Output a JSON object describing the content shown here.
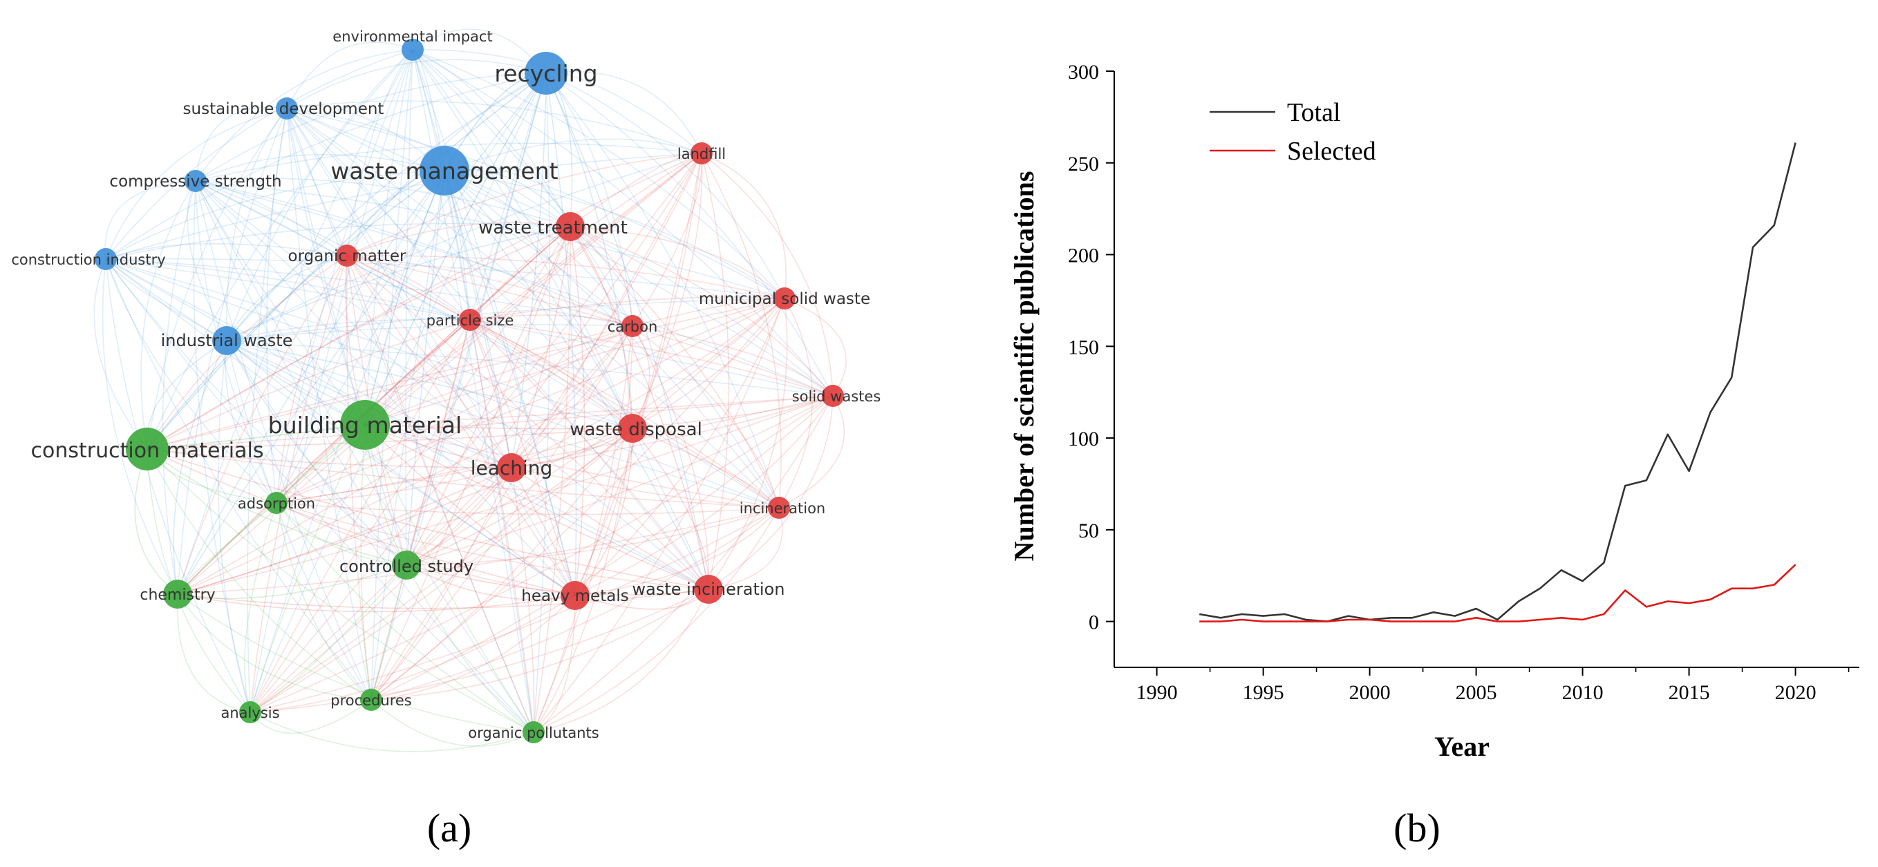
{
  "panel_labels": [
    "(a)",
    "(b)"
  ],
  "colors": {
    "blue": "#3d8fd9",
    "red": "#e03a3a",
    "green": "#3aa83a",
    "total_line": "#333333",
    "selected_line": "#e01818"
  },
  "chart_data": [
    {
      "type": "network",
      "title": "",
      "clusters": [
        "blue",
        "red",
        "green"
      ],
      "nodes": [
        {
          "label": "environmental impact",
          "cluster": "blue",
          "weight": 2
        },
        {
          "label": "recycling",
          "cluster": "blue",
          "weight": 5
        },
        {
          "label": "sustainable development",
          "cluster": "blue",
          "weight": 2
        },
        {
          "label": "waste management",
          "cluster": "blue",
          "weight": 6
        },
        {
          "label": "compressive strength",
          "cluster": "blue",
          "weight": 2
        },
        {
          "label": "construction industry",
          "cluster": "blue",
          "weight": 2
        },
        {
          "label": "industrial waste",
          "cluster": "blue",
          "weight": 3
        },
        {
          "label": "landfill",
          "cluster": "red",
          "weight": 2
        },
        {
          "label": "waste treatment",
          "cluster": "red",
          "weight": 3
        },
        {
          "label": "organic matter",
          "cluster": "red",
          "weight": 2
        },
        {
          "label": "municipal solid waste",
          "cluster": "red",
          "weight": 2
        },
        {
          "label": "particle size",
          "cluster": "red",
          "weight": 2
        },
        {
          "label": "carbon",
          "cluster": "red",
          "weight": 2
        },
        {
          "label": "solid wastes",
          "cluster": "red",
          "weight": 2
        },
        {
          "label": "waste disposal",
          "cluster": "red",
          "weight": 3
        },
        {
          "label": "leaching",
          "cluster": "red",
          "weight": 3
        },
        {
          "label": "incineration",
          "cluster": "red",
          "weight": 2
        },
        {
          "label": "heavy metals",
          "cluster": "red",
          "weight": 3
        },
        {
          "label": "waste incineration",
          "cluster": "red",
          "weight": 3
        },
        {
          "label": "building material",
          "cluster": "green",
          "weight": 6
        },
        {
          "label": "construction materials",
          "cluster": "green",
          "weight": 5
        },
        {
          "label": "adsorption",
          "cluster": "green",
          "weight": 2
        },
        {
          "label": "controlled study",
          "cluster": "green",
          "weight": 3
        },
        {
          "label": "chemistry",
          "cluster": "green",
          "weight": 3
        },
        {
          "label": "analysis",
          "cluster": "green",
          "weight": 2
        },
        {
          "label": "procedures",
          "cluster": "green",
          "weight": 2
        },
        {
          "label": "organic pollutants",
          "cluster": "green",
          "weight": 2
        }
      ]
    },
    {
      "type": "line",
      "title": "",
      "xlabel": "Year",
      "ylabel": "Number of scientific publications",
      "xlim": [
        1988,
        2023
      ],
      "ylim": [
        -25,
        300
      ],
      "xticks": [
        1990,
        1995,
        2000,
        2005,
        2010,
        2015,
        2020
      ],
      "yticks": [
        0,
        50,
        100,
        150,
        200,
        250,
        300
      ],
      "legend_position": "top-left",
      "x": [
        1992,
        1993,
        1994,
        1995,
        1996,
        1997,
        1998,
        1999,
        2000,
        2001,
        2002,
        2003,
        2004,
        2005,
        2006,
        2007,
        2008,
        2009,
        2010,
        2011,
        2012,
        2013,
        2014,
        2015,
        2016,
        2017,
        2018,
        2019,
        2020
      ],
      "series": [
        {
          "name": "Total",
          "color": "#333333",
          "values": [
            4,
            2,
            4,
            3,
            4,
            1,
            0,
            3,
            1,
            2,
            2,
            5,
            3,
            7,
            1,
            11,
            18,
            28,
            22,
            32,
            74,
            77,
            102,
            82,
            114,
            133,
            204,
            216,
            261
          ]
        },
        {
          "name": "Selected",
          "color": "#e01818",
          "values": [
            0,
            0,
            1,
            0,
            0,
            0,
            0,
            1,
            1,
            0,
            0,
            0,
            0,
            2,
            0,
            0,
            1,
            2,
            1,
            4,
            17,
            8,
            11,
            10,
            12,
            18,
            18,
            20,
            31
          ]
        }
      ]
    }
  ]
}
